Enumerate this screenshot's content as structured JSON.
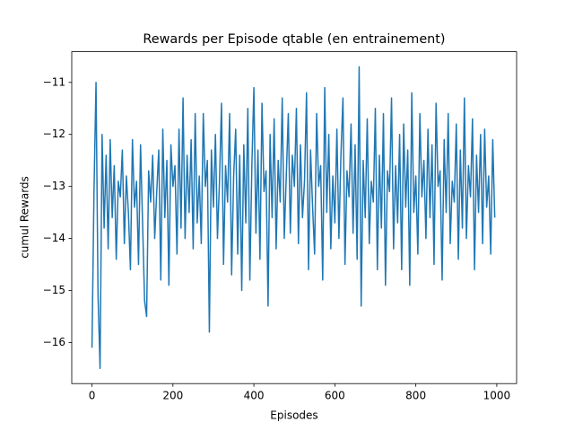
{
  "chart_data": {
    "type": "line",
    "title": "Rewards per Episode qtable (en entrainement)",
    "xlabel": "Episodes",
    "ylabel": "cumul Rewards",
    "color": "#1f77b4",
    "xlim": [
      -49.95,
      1048.95
    ],
    "ylim": [
      -16.79,
      -10.41
    ],
    "xticks": [
      0,
      200,
      400,
      600,
      800,
      1000
    ],
    "yticks": [
      {
        "value": -16,
        "label": "−16"
      },
      {
        "value": -15,
        "label": "−15"
      },
      {
        "value": -14,
        "label": "−14"
      },
      {
        "value": -13,
        "label": "−13"
      },
      {
        "value": -12,
        "label": "−12"
      },
      {
        "value": -11,
        "label": "−11"
      }
    ],
    "x": [
      0,
      5,
      10,
      15,
      20,
      25,
      30,
      35,
      40,
      45,
      50,
      55,
      60,
      65,
      70,
      75,
      80,
      85,
      90,
      95,
      100,
      105,
      110,
      115,
      120,
      125,
      130,
      135,
      140,
      145,
      150,
      155,
      160,
      165,
      170,
      175,
      180,
      185,
      190,
      195,
      200,
      205,
      210,
      215,
      220,
      225,
      230,
      235,
      240,
      245,
      250,
      255,
      260,
      265,
      270,
      275,
      280,
      285,
      290,
      295,
      300,
      305,
      310,
      315,
      320,
      325,
      330,
      335,
      340,
      345,
      350,
      355,
      360,
      365,
      370,
      375,
      380,
      385,
      390,
      395,
      400,
      405,
      410,
      415,
      420,
      425,
      430,
      435,
      440,
      445,
      450,
      455,
      460,
      465,
      470,
      475,
      480,
      485,
      490,
      495,
      500,
      505,
      510,
      515,
      520,
      525,
      530,
      535,
      540,
      545,
      550,
      555,
      560,
      565,
      570,
      575,
      580,
      585,
      590,
      595,
      600,
      605,
      610,
      615,
      620,
      625,
      630,
      635,
      640,
      645,
      650,
      655,
      660,
      665,
      670,
      675,
      680,
      685,
      690,
      695,
      700,
      705,
      710,
      715,
      720,
      725,
      730,
      735,
      740,
      745,
      750,
      755,
      760,
      765,
      770,
      775,
      780,
      785,
      790,
      795,
      800,
      805,
      810,
      815,
      820,
      825,
      830,
      835,
      840,
      845,
      850,
      855,
      860,
      865,
      870,
      875,
      880,
      885,
      890,
      895,
      900,
      905,
      910,
      915,
      920,
      925,
      930,
      935,
      940,
      945,
      950,
      955,
      960,
      965,
      970,
      975,
      980,
      985,
      990,
      995
    ],
    "values": [
      -16.1,
      -13.1,
      -11.0,
      -15.1,
      -16.5,
      -12.0,
      -13.8,
      -12.4,
      -14.2,
      -12.1,
      -13.6,
      -12.6,
      -14.4,
      -12.9,
      -13.2,
      -12.3,
      -14.1,
      -12.8,
      -13.5,
      -14.6,
      -12.1,
      -13.4,
      -12.9,
      -14.5,
      -12.2,
      -13.7,
      -15.2,
      -15.5,
      -12.7,
      -13.3,
      -12.4,
      -14.0,
      -13.1,
      -12.3,
      -14.8,
      -11.9,
      -13.6,
      -12.5,
      -14.9,
      -12.2,
      -13.0,
      -12.6,
      -14.3,
      -11.9,
      -13.8,
      -11.3,
      -14.0,
      -12.4,
      -13.5,
      -12.1,
      -14.2,
      -11.6,
      -13.7,
      -12.8,
      -14.1,
      -11.6,
      -13.0,
      -12.5,
      -15.8,
      -12.3,
      -13.4,
      -12.0,
      -14.0,
      -12.9,
      -11.4,
      -14.5,
      -12.6,
      -13.3,
      -11.6,
      -14.7,
      -12.8,
      -11.9,
      -14.3,
      -12.4,
      -15.0,
      -12.2,
      -13.7,
      -11.5,
      -14.8,
      -12.6,
      -11.1,
      -13.9,
      -12.3,
      -14.4,
      -11.4,
      -13.1,
      -12.7,
      -15.3,
      -12.0,
      -13.6,
      -11.7,
      -14.2,
      -12.5,
      -13.3,
      -11.3,
      -14.0,
      -12.8,
      -11.6,
      -13.9,
      -12.4,
      -13.0,
      -11.5,
      -14.1,
      -12.2,
      -13.6,
      -12.9,
      -11.2,
      -14.6,
      -12.3,
      -13.4,
      -14.3,
      -11.6,
      -13.0,
      -12.6,
      -14.8,
      -11.1,
      -13.5,
      -12.0,
      -14.2,
      -12.8,
      -13.7,
      -11.9,
      -14.0,
      -12.4,
      -11.3,
      -14.5,
      -12.7,
      -13.2,
      -11.8,
      -13.9,
      -12.2,
      -14.4,
      -10.7,
      -15.3,
      -12.5,
      -13.6,
      -11.7,
      -14.1,
      -12.9,
      -13.3,
      -11.5,
      -14.6,
      -12.4,
      -13.8,
      -11.6,
      -14.9,
      -12.7,
      -13.1,
      -11.3,
      -14.2,
      -12.6,
      -13.7,
      -12.0,
      -14.6,
      -11.8,
      -13.4,
      -12.3,
      -14.9,
      -11.2,
      -13.5,
      -12.8,
      -14.3,
      -11.6,
      -13.2,
      -12.5,
      -14.0,
      -11.9,
      -13.6,
      -12.2,
      -14.5,
      -11.4,
      -13.0,
      -12.7,
      -14.8,
      -12.1,
      -13.5,
      -11.6,
      -14.1,
      -12.9,
      -13.3,
      -11.8,
      -14.4,
      -12.3,
      -13.8,
      -11.3,
      -14.0,
      -12.6,
      -13.2,
      -11.7,
      -14.6,
      -12.4,
      -13.5,
      -12.0,
      -14.1,
      -11.9,
      -13.4,
      -12.8,
      -14.3,
      -12.1,
      -13.6
    ]
  }
}
